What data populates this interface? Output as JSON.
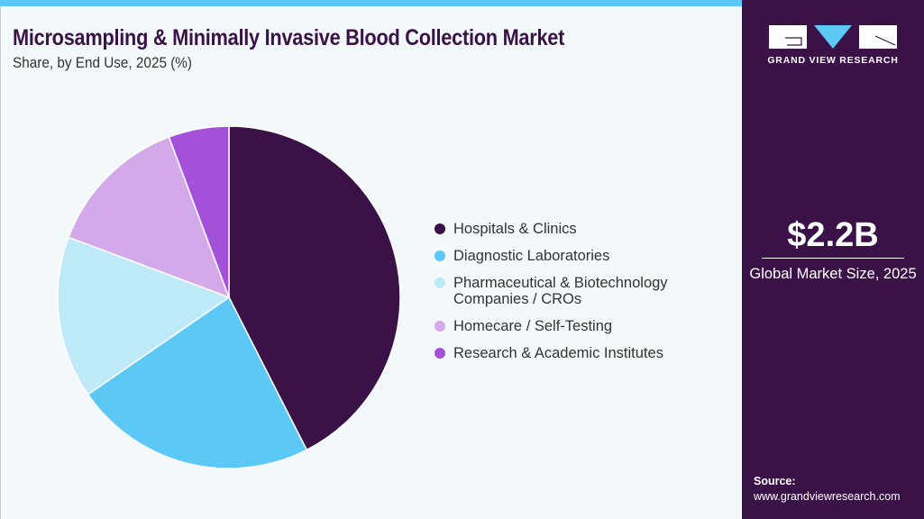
{
  "header": {
    "title": "Microsampling & Minimally Invasive Blood Collection Market",
    "subtitle": "Share, by End Use, 2025 (%)"
  },
  "brand": {
    "name": "GRAND VIEW RESEARCH",
    "colors": {
      "dark": "#3a1248",
      "accent": "#5bc8f5"
    }
  },
  "highlight": {
    "value": "$2.2B",
    "label": "Global Market Size, 2025"
  },
  "source": {
    "label": "Source:",
    "url": "www.grandviewresearch.com"
  },
  "chart_data": {
    "type": "pie",
    "title": "Share, by End Use, 2025 (%)",
    "legend_position": "right",
    "start": "top, clockwise",
    "categories": [
      "Hospitals & Clinics",
      "Diagnostic Laboratories",
      "Pharmaceutical & Biotechnology Companies / CROs",
      "Homecare / Self-Testing",
      "Research & Academic Institutes"
    ],
    "values": [
      42.5,
      22.9,
      15.3,
      13.6,
      5.7
    ],
    "colors": [
      "#3a1248",
      "#5bc8f5",
      "#bde9f8",
      "#d3a9ea",
      "#a550d8"
    ]
  }
}
